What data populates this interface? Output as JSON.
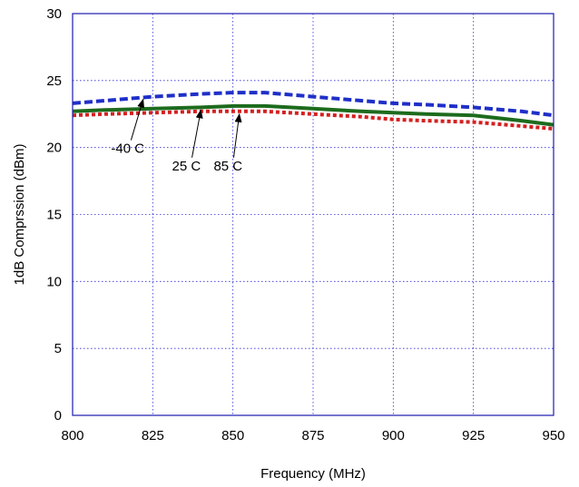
{
  "chart_data": {
    "type": "line",
    "title": "",
    "xlabel": "Frequency (MHz)",
    "ylabel": "1dB Comprssion (dBm)",
    "xlim": [
      800,
      950
    ],
    "ylim": [
      0,
      30
    ],
    "xticks": [
      800,
      825,
      850,
      875,
      900,
      925,
      950
    ],
    "yticks": [
      0,
      5,
      10,
      15,
      20,
      25,
      30
    ],
    "grid": true,
    "colors": {
      "grid": "#2b2bd8",
      "frame": "#1a1ab0"
    },
    "series": [
      {
        "name": "-40 C",
        "color": "#1f2fc8",
        "style": "dashed",
        "x": [
          800,
          810,
          825,
          840,
          850,
          860,
          875,
          890,
          900,
          910,
          925,
          940,
          950
        ],
        "y": [
          23.3,
          23.5,
          23.8,
          24.0,
          24.1,
          24.1,
          23.8,
          23.5,
          23.3,
          23.2,
          23.0,
          22.7,
          22.4
        ]
      },
      {
        "name": "25 C",
        "color": "#1d6b1d",
        "style": "solid",
        "x": [
          800,
          810,
          825,
          840,
          850,
          860,
          875,
          890,
          900,
          910,
          925,
          940,
          950
        ],
        "y": [
          22.7,
          22.8,
          22.9,
          23.0,
          23.1,
          23.1,
          22.9,
          22.7,
          22.6,
          22.5,
          22.4,
          22.0,
          21.7
        ]
      },
      {
        "name": "85 C",
        "color": "#d42020",
        "style": "dotted",
        "x": [
          800,
          810,
          825,
          840,
          850,
          860,
          875,
          890,
          900,
          910,
          925,
          940,
          950
        ],
        "y": [
          22.4,
          22.5,
          22.6,
          22.7,
          22.7,
          22.7,
          22.5,
          22.3,
          22.1,
          22.0,
          21.9,
          21.6,
          21.4
        ]
      }
    ],
    "annotations": [
      {
        "text": "-40 C",
        "series": "-40 C",
        "x": 822,
        "y": 23.8,
        "text_x": 812,
        "text_y": 19.6
      },
      {
        "text": "25 C",
        "series": "25 C",
        "x": 840,
        "y": 23.0,
        "text_x": 831,
        "text_y": 18.3
      },
      {
        "text": "85 C",
        "series": "85 C",
        "x": 852,
        "y": 22.7,
        "text_x": 844,
        "text_y": 18.3
      }
    ]
  }
}
